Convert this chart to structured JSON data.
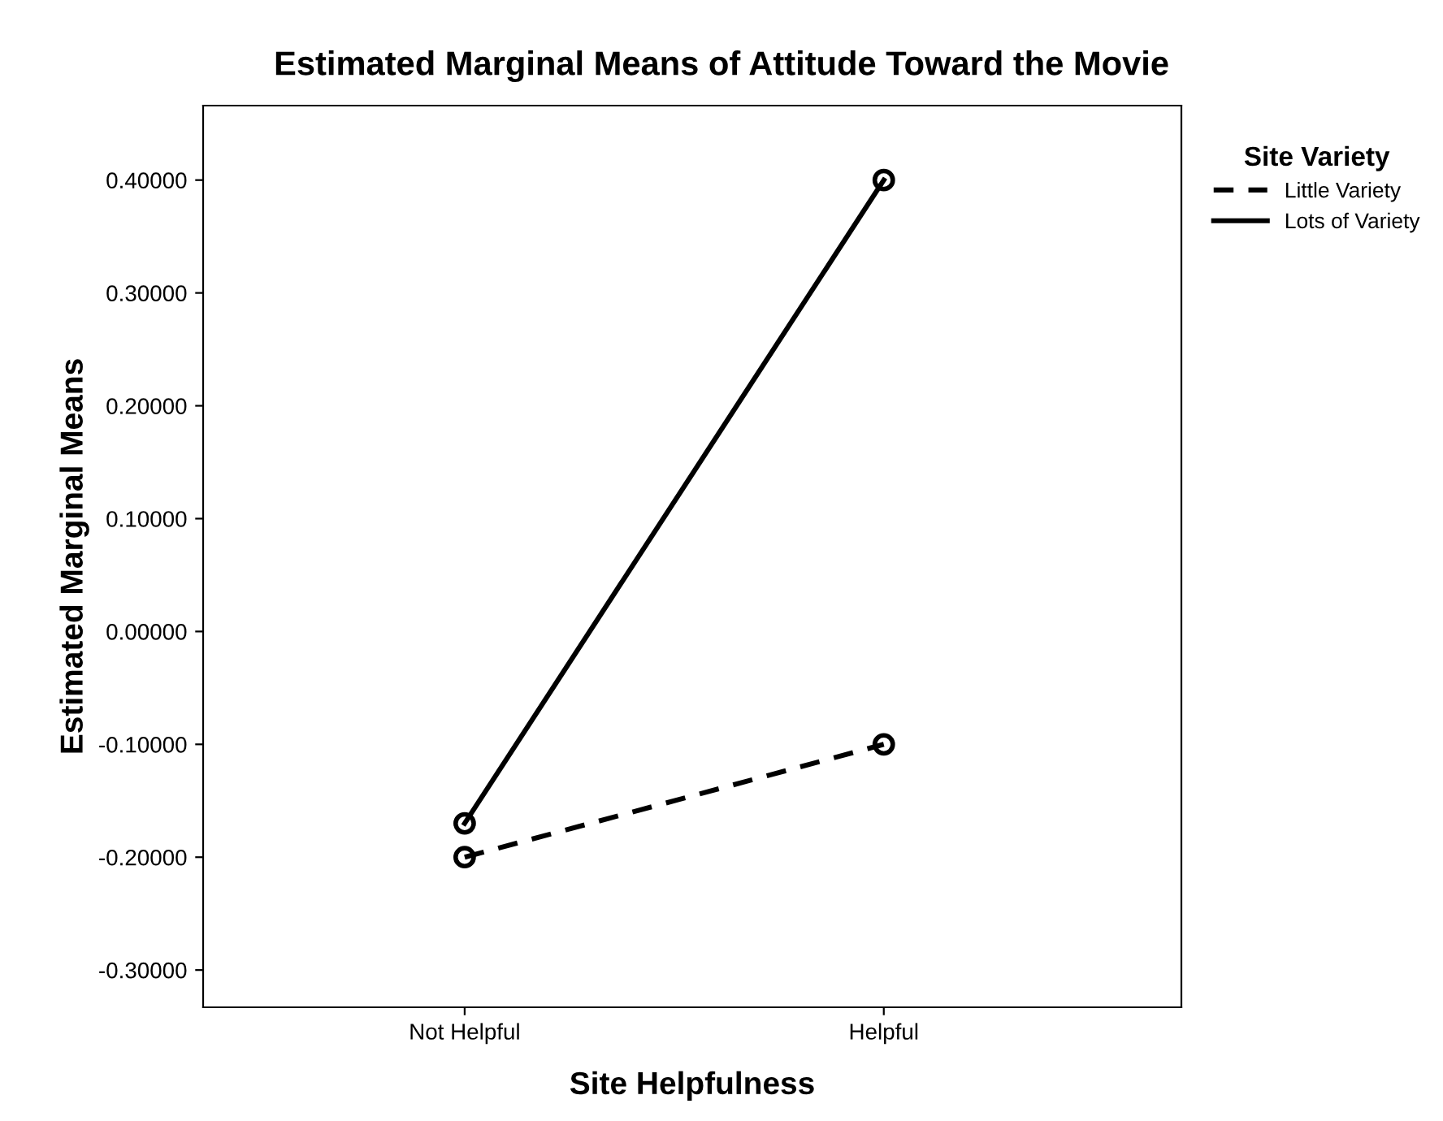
{
  "chart_data": {
    "type": "line",
    "title": "Estimated Marginal Means of Attitude Toward the Movie",
    "xlabel": "Site Helpfulness",
    "ylabel": "Estimated Marginal Means",
    "legend_title": "Site Variety",
    "categories": [
      "Not Helpful",
      "Helpful"
    ],
    "series": [
      {
        "name": "Little Variety",
        "color": "#000000",
        "values": [
          -0.2,
          -0.1
        ],
        "line_style": "dashed"
      },
      {
        "name": "Lots of Variety",
        "color": "#000000",
        "values": [
          -0.17,
          0.4
        ],
        "line_style": "solid"
      }
    ],
    "ylim": [
      -0.333,
      0.466
    ],
    "yticks": [
      {
        "value": -0.3,
        "label": "-0.30000"
      },
      {
        "value": -0.2,
        "label": "-0.20000"
      },
      {
        "value": -0.1,
        "label": "-0.10000"
      },
      {
        "value": 0,
        "label": "0.00000"
      },
      {
        "value": 0.1,
        "label": "0.10000"
      },
      {
        "value": 0.2,
        "label": "0.20000"
      },
      {
        "value": 0.3,
        "label": "0.30000"
      },
      {
        "value": 0.4,
        "label": "0.40000"
      }
    ],
    "marker": "circle",
    "grid": false,
    "legend": "top right"
  }
}
